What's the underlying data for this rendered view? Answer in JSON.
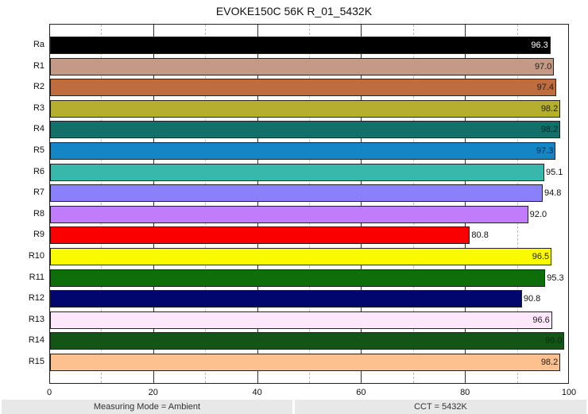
{
  "chart_data": {
    "type": "bar",
    "orientation": "horizontal",
    "title": "EVOKE150C 56K R_01_5432K",
    "xlabel": "",
    "ylabel": "",
    "xlim": [
      0,
      100
    ],
    "x_ticks": [
      "0",
      "20",
      "40",
      "60",
      "80",
      "100"
    ],
    "grid": {
      "major_every": 20,
      "minor_every": 10,
      "minor_style": "dashed"
    },
    "categories": [
      "Ra",
      "R1",
      "R2",
      "R3",
      "R4",
      "R5",
      "R6",
      "R7",
      "R8",
      "R9",
      "R10",
      "R11",
      "R12",
      "R13",
      "R14",
      "R15"
    ],
    "values": [
      96.3,
      97.0,
      97.4,
      98.2,
      98.2,
      97.3,
      95.1,
      94.8,
      92.0,
      80.8,
      96.5,
      95.3,
      90.8,
      96.6,
      99.0,
      98.2
    ],
    "value_labels": [
      "96.3",
      "97.0",
      "97.4",
      "98.2",
      "98.2",
      "97.3",
      "95.1",
      "94.8",
      "92.0",
      "80.8",
      "96.5",
      "95.3",
      "90.8",
      "96.6",
      "99.0",
      "98.2"
    ],
    "colors": [
      "#000000",
      "#c49a86",
      "#bf6c3e",
      "#b5ae2e",
      "#136f6a",
      "#1486c6",
      "#38b8ab",
      "#8a80fa",
      "#c07cfb",
      "#fb0000",
      "#fbfb00",
      "#0e6e0a",
      "#00066e",
      "#fde8fb",
      "#135417",
      "#fdc08f"
    ],
    "label_inside": [
      true,
      true,
      true,
      true,
      true,
      true,
      false,
      false,
      false,
      false,
      true,
      false,
      false,
      true,
      true,
      true
    ],
    "label_colors": [
      "#ffffff",
      "#222222",
      "#222222",
      "#222222",
      "#0a2a2a",
      "#0a2a4a",
      "#111111",
      "#111111",
      "#111111",
      "#111111",
      "#222222",
      "#111111",
      "#111111",
      "#222222",
      "#0a2a0a",
      "#222222"
    ]
  },
  "footer": {
    "measuring_mode": "Measuring Mode = Ambient",
    "cct": "CCT = 5432K"
  }
}
